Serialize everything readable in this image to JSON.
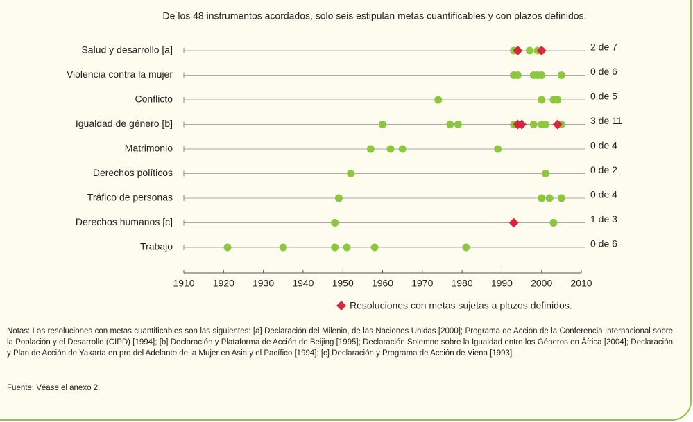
{
  "chart_data": {
    "type": "scatter",
    "title": "De los 48 instrumentos acordados, solo seis estipulan metas cuantificables y con plazos definidos.",
    "categories": [
      "Salud y desarrollo [a]",
      "Violencia contra la mujer",
      "Conflicto",
      "Igualdad de género [b]",
      "Matrimonio",
      "Derechos políticos",
      "Tráfico de personas",
      "Derechos humanos [c]",
      "Trabajo"
    ],
    "right_labels": [
      "2 de 7",
      "0 de 6",
      "0 de 5",
      "3 de 11",
      "0 de 4",
      "0 de 2",
      "0 de 4",
      "1 de 3",
      "0 de 6"
    ],
    "series": [
      {
        "color": "#8dc63f",
        "marker": "circle",
        "x": [
          [
            1993,
            1994,
            1997,
            1999,
            2000
          ],
          [
            1993,
            1994,
            1998,
            1999,
            2000,
            2005
          ],
          [
            1974,
            2000,
            2003,
            2004,
            2004
          ],
          [
            1960,
            1977,
            1979,
            1993,
            1998,
            2000,
            2001,
            2005
          ],
          [
            1957,
            1962,
            1965,
            1989
          ],
          [
            1952,
            2001
          ],
          [
            1949,
            2000,
            2002,
            2005
          ],
          [
            1948,
            2003
          ],
          [
            1921,
            1935,
            1948,
            1951,
            1958,
            1981
          ]
        ]
      },
      {
        "name": "Resoluciones con metas sujetas a plazos definidos.",
        "color": "#d7263d",
        "marker": "diamond",
        "x": [
          [
            1994,
            2000
          ],
          [],
          [],
          [
            1994,
            1995,
            2004
          ],
          [],
          [],
          [],
          [
            1993
          ],
          []
        ]
      }
    ],
    "xlim": [
      1910,
      2010
    ],
    "xticks": [
      1910,
      1920,
      1930,
      1940,
      1950,
      1960,
      1970,
      1980,
      1990,
      2000,
      2010
    ]
  },
  "notes": "Notas: Las resoluciones con metas cuantificables son las siguientes: [a] Declaración del Milenio, de las Naciones Unidas [2000]; Programa de Acción de la Conferencia Internacional sobre la Población y el Desarrollo (CIPD) [1994]; [b] Declaración y Plataforma de Acción de Beijing [1995]; Declaración Solemne sobre la Igualdad entre los Géneros en África [2004]; Declaración y Plan de Acción de Yakarta en pro del Adelanto de la Mujer en Asia y el Pacífico [1994]; [c] Declaración y Programa de Acción de Viena [1993].",
  "source": "Fuente: Véase el anexo 2."
}
